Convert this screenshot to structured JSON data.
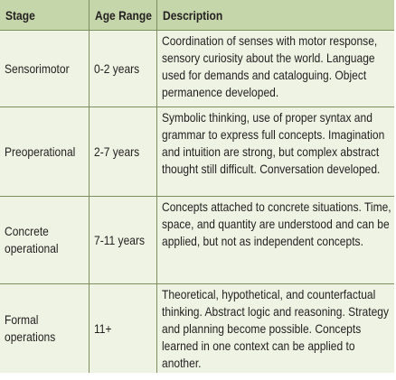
{
  "table": {
    "headers": [
      "Stage",
      "Age Range",
      "Description"
    ],
    "rows": [
      {
        "stage": "Sensorimotor",
        "age": "0-2 years",
        "description": "Coordination of senses with motor response, sensory curiosity about the world. Language used for demands and cataloguing. Object permanence developed."
      },
      {
        "stage": "Preoperational",
        "age": "2-7 years",
        "description": "Symbolic thinking, use of proper syntax and grammar to express full concepts. Imagination and intuition are strong, but complex abstract thought still difficult. Conversation developed."
      },
      {
        "stage": "Concrete operational",
        "age": "7-11 years",
        "description": "Concepts attached to concrete situations. Time, space, and quantity are understood and can be applied, but not as independent concepts."
      },
      {
        "stage": "Formal operations",
        "age": "11+",
        "description": "Theoretical, hypothetical, and counterfactual thinking. Abstract logic and reasoning. Strategy and planning become possible. Concepts learned in one context can be applied to another."
      }
    ]
  },
  "colors": {
    "header_background": "#c6d6ab",
    "body_background": "#eef3e3",
    "rule": "#7d8f5e"
  }
}
